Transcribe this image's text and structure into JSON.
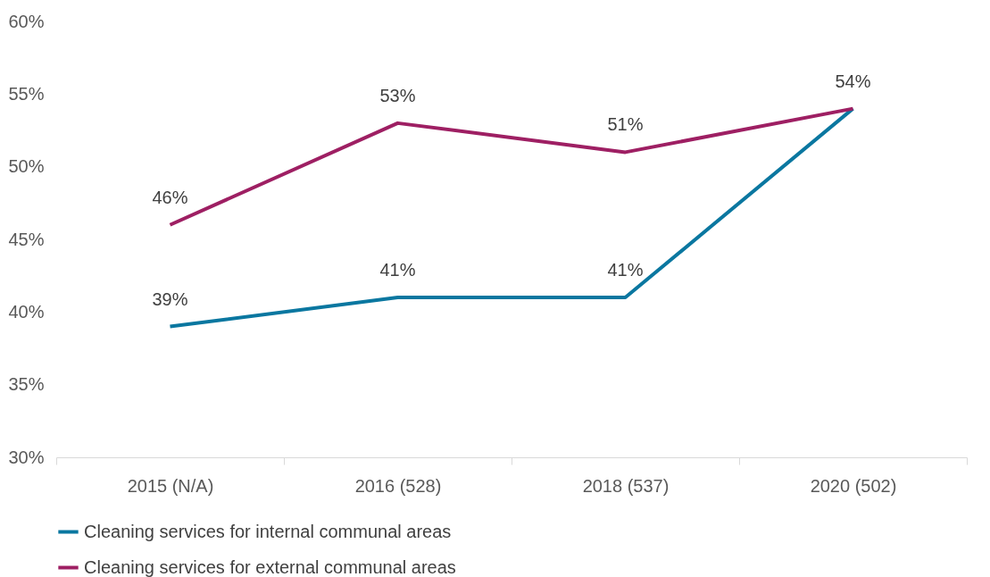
{
  "chart_data": {
    "type": "line",
    "categories": [
      "2015 (N/A)",
      "2016 (528)",
      "2018 (537)",
      "2020 (502)"
    ],
    "series": [
      {
        "name": "Cleaning services for internal communal areas",
        "color": "#0a77a0",
        "values": [
          39,
          41,
          41,
          54
        ],
        "value_labels": [
          "39%",
          "41%",
          "41%",
          null
        ]
      },
      {
        "name": "Cleaning services for external communal areas",
        "color": "#9e1f63",
        "values": [
          46,
          53,
          51,
          54
        ],
        "value_labels": [
          "46%",
          "53%",
          "51%",
          "54%"
        ]
      }
    ],
    "ylim": [
      30,
      60
    ],
    "yticks": [
      {
        "value": 30,
        "label": "30%"
      },
      {
        "value": 35,
        "label": "35%"
      },
      {
        "value": 40,
        "label": "40%"
      },
      {
        "value": 45,
        "label": "45%"
      },
      {
        "value": 50,
        "label": "50%"
      },
      {
        "value": 55,
        "label": "55%"
      },
      {
        "value": 60,
        "label": "60%"
      }
    ],
    "grid": false,
    "legend": "bottom",
    "marker": "none",
    "line_style": "solid"
  }
}
